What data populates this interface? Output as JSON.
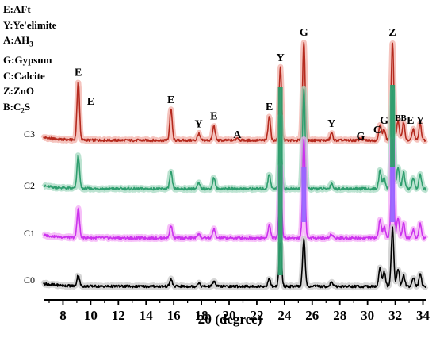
{
  "chart_data": {
    "type": "line",
    "xlabel": "2θ (degree)",
    "ylabel": "",
    "xlim": [
      6.6,
      34.2
    ],
    "x_ticks": [
      8,
      10,
      12,
      14,
      16,
      18,
      20,
      22,
      24,
      26,
      28,
      30,
      32,
      34
    ],
    "grid": false,
    "colors": {
      "C3": "#b52a1e",
      "C2": "#2e9e6e",
      "C1": "#cc33ee",
      "C0": "#000000",
      "shadow_C3": "#f2b0a8",
      "shadow_C2": "#a6d9c1",
      "shadow_C1": "#f3a9f5",
      "shadow_C0": "#c8c8c8",
      "peak_purple": "#9966ff",
      "peak_green": "#2e9e6e"
    },
    "legend": {
      "placement": "top-left",
      "entries": [
        {
          "key": "E",
          "name": "AFt"
        },
        {
          "key": "Y",
          "name": "Ye'elimite"
        },
        {
          "key": "A",
          "name": "AH",
          "sub": "3"
        },
        {
          "key": "G",
          "name": "Gypsum"
        },
        {
          "key": "C",
          "name": "Calcite"
        },
        {
          "key": "Z",
          "name": "ZnO"
        },
        {
          "key": "B",
          "name": "C",
          "sub": "2",
          "suffix": "S"
        }
      ]
    },
    "series": [
      {
        "name": "C3",
        "baseline": 0.0,
        "scale": 1.0,
        "peaks": [
          {
            "x": 9.1,
            "h": 16
          },
          {
            "x": 15.8,
            "h": 8.5
          },
          {
            "x": 17.8,
            "h": 1.8
          },
          {
            "x": 18.9,
            "h": 4.0
          },
          {
            "x": 20.6,
            "h": 0.8
          },
          {
            "x": 22.9,
            "h": 6.5
          },
          {
            "x": 23.7,
            "h": 20.0
          },
          {
            "x": 25.4,
            "h": 27.0
          },
          {
            "x": 27.4,
            "h": 2.0
          },
          {
            "x": 29.5,
            "h": 0.6
          },
          {
            "x": 30.9,
            "h": 4.5
          },
          {
            "x": 31.2,
            "h": 3.2
          },
          {
            "x": 31.8,
            "h": 27.0
          },
          {
            "x": 32.2,
            "h": 5.5
          },
          {
            "x": 32.6,
            "h": 5.0
          },
          {
            "x": 33.3,
            "h": 3.0
          },
          {
            "x": 33.8,
            "h": 4.5
          }
        ]
      },
      {
        "name": "C2",
        "baseline": 0.0,
        "scale": 1.0,
        "peaks": [
          {
            "x": 9.1,
            "h": 9
          },
          {
            "x": 15.8,
            "h": 4.5
          },
          {
            "x": 17.8,
            "h": 1.5
          },
          {
            "x": 18.9,
            "h": 3.0
          },
          {
            "x": 22.9,
            "h": 4.0
          },
          {
            "x": 23.7,
            "h": 20.0
          },
          {
            "x": 25.4,
            "h": 27.0
          },
          {
            "x": 27.4,
            "h": 1.5
          },
          {
            "x": 30.9,
            "h": 5.0
          },
          {
            "x": 31.2,
            "h": 3.0
          },
          {
            "x": 31.8,
            "h": 27.0
          },
          {
            "x": 32.2,
            "h": 6.0
          },
          {
            "x": 32.6,
            "h": 4.5
          },
          {
            "x": 33.3,
            "h": 3.0
          },
          {
            "x": 33.8,
            "h": 4.0
          }
        ]
      },
      {
        "name": "C1",
        "baseline": 0.0,
        "scale": 1.0,
        "peaks": [
          {
            "x": 9.1,
            "h": 8
          },
          {
            "x": 15.8,
            "h": 3.5
          },
          {
            "x": 17.8,
            "h": 1.2
          },
          {
            "x": 18.9,
            "h": 2.5
          },
          {
            "x": 22.9,
            "h": 3.5
          },
          {
            "x": 23.7,
            "h": 20.0
          },
          {
            "x": 25.4,
            "h": 27.0
          },
          {
            "x": 27.4,
            "h": 1.2
          },
          {
            "x": 30.9,
            "h": 5.0
          },
          {
            "x": 31.2,
            "h": 3.0
          },
          {
            "x": 31.8,
            "h": 27.0
          },
          {
            "x": 32.2,
            "h": 5.5
          },
          {
            "x": 32.6,
            "h": 4.0
          },
          {
            "x": 33.3,
            "h": 2.5
          },
          {
            "x": 33.8,
            "h": 4.0
          }
        ]
      },
      {
        "name": "C0",
        "baseline": 0.0,
        "scale": 1.0,
        "peaks": [
          {
            "x": 9.1,
            "h": 3
          },
          {
            "x": 15.8,
            "h": 2.0
          },
          {
            "x": 17.8,
            "h": 1.0
          },
          {
            "x": 18.9,
            "h": 1.5
          },
          {
            "x": 22.9,
            "h": 2.0
          },
          {
            "x": 23.7,
            "h": 12.0
          },
          {
            "x": 25.4,
            "h": 13.0
          },
          {
            "x": 27.4,
            "h": 1.2
          },
          {
            "x": 30.9,
            "h": 5.0
          },
          {
            "x": 31.2,
            "h": 4.0
          },
          {
            "x": 31.8,
            "h": 16.0
          },
          {
            "x": 32.2,
            "h": 5.0
          },
          {
            "x": 32.6,
            "h": 3.0
          },
          {
            "x": 33.3,
            "h": 2.5
          },
          {
            "x": 33.8,
            "h": 3.5
          }
        ]
      }
    ],
    "annotations": [
      {
        "text": "E",
        "x": 9.1,
        "above": "C3"
      },
      {
        "text": "E",
        "x": 10.0,
        "above": "C3"
      },
      {
        "text": "E",
        "x": 15.8,
        "above": "C3"
      },
      {
        "text": "Y",
        "x": 17.8,
        "above": "C3"
      },
      {
        "text": "E",
        "x": 18.9,
        "above": "C3"
      },
      {
        "text": "A",
        "x": 20.6,
        "above": "C3"
      },
      {
        "text": "E",
        "x": 22.9,
        "above": "C3"
      },
      {
        "text": "Y",
        "x": 23.7,
        "above": "C3"
      },
      {
        "text": "G",
        "x": 25.4,
        "above": "C3"
      },
      {
        "text": "Y",
        "x": 27.4,
        "above": "C3"
      },
      {
        "text": "G",
        "x": 29.5,
        "above": "C3"
      },
      {
        "text": "C",
        "x": 30.7,
        "above": "C3"
      },
      {
        "text": "G",
        "x": 31.2,
        "above": "C3"
      },
      {
        "text": "Z",
        "x": 31.8,
        "above": "C3"
      },
      {
        "text": "B",
        "x": 32.2,
        "above": "C3"
      },
      {
        "text": "B",
        "x": 32.6,
        "above": "C3"
      },
      {
        "text": "E",
        "x": 33.1,
        "above": "C3"
      },
      {
        "text": "Y",
        "x": 33.8,
        "above": "C3"
      }
    ]
  }
}
